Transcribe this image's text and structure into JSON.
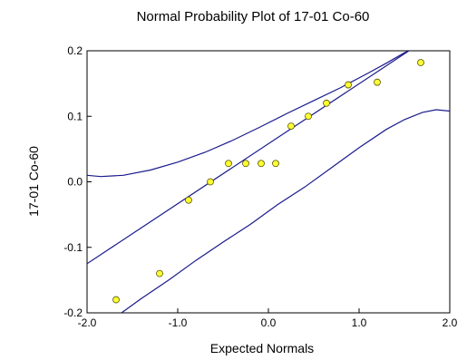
{
  "chart_data": {
    "type": "scatter",
    "title": "Normal Probability Plot of 17-01 Co-60",
    "xlabel": "Expected Normals",
    "ylabel": "17-01 Co-60",
    "xlim": [
      -2.0,
      2.0
    ],
    "ylim": [
      -0.2,
      0.2
    ],
    "x_ticks": [
      -2.0,
      -1.0,
      0.0,
      1.0,
      2.0
    ],
    "x_tick_labels": [
      "-2.0",
      "-1.0",
      "0.0",
      "1.0",
      "2.0"
    ],
    "y_ticks": [
      -0.2,
      -0.1,
      0.0,
      0.1,
      0.2
    ],
    "y_tick_labels": [
      "-0.2",
      "-0.1",
      "0.0",
      "0.1",
      "0.2"
    ],
    "grid": false,
    "points": {
      "x": [
        -1.68,
        -1.2,
        -0.88,
        -0.64,
        -0.44,
        -0.25,
        -0.08,
        0.08,
        0.25,
        0.44,
        0.64,
        0.88,
        1.2,
        1.68
      ],
      "y": [
        -0.18,
        -0.14,
        -0.028,
        0.0,
        0.028,
        0.028,
        0.028,
        0.028,
        0.085,
        0.1,
        0.12,
        0.148,
        0.152,
        0.182
      ]
    },
    "fit_line": {
      "x": [
        -2.0,
        1.55
      ],
      "y": [
        -0.125,
        0.2
      ]
    },
    "upper_band": {
      "x": [
        -2.0,
        -1.85,
        -1.6,
        -1.3,
        -1.0,
        -0.7,
        -0.4,
        -0.1,
        0.2,
        0.5,
        0.8,
        1.1,
        1.3,
        1.5,
        1.55
      ],
      "y": [
        0.01,
        0.008,
        0.01,
        0.018,
        0.03,
        0.045,
        0.063,
        0.083,
        0.104,
        0.124,
        0.144,
        0.166,
        0.181,
        0.197,
        0.2
      ]
    },
    "lower_band": {
      "x": [
        -1.62,
        -1.4,
        -1.1,
        -0.8,
        -0.5,
        -0.2,
        0.1,
        0.4,
        0.7,
        1.0,
        1.3,
        1.5,
        1.7,
        1.85,
        2.0
      ],
      "y": [
        -0.2,
        -0.178,
        -0.15,
        -0.12,
        -0.092,
        -0.065,
        -0.035,
        -0.008,
        0.022,
        0.052,
        0.08,
        0.095,
        0.106,
        0.11,
        0.108
      ]
    }
  }
}
